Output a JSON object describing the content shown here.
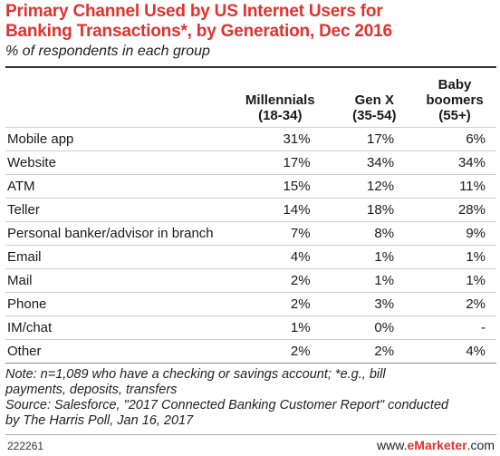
{
  "chart_data": {
    "type": "table",
    "title_line1": "Primary Channel Used by US Internet Users for",
    "title_line2": "Banking Transactions*, by Generation, Dec 2016",
    "subtitle": "% of respondents in each group",
    "columns": [
      {
        "line1": "Millennials",
        "line2": "(18-34)",
        "line3": ""
      },
      {
        "line1": "Gen X",
        "line2": "(35-54)",
        "line3": ""
      },
      {
        "line1": "Baby",
        "line2": "boomers",
        "line3": "(55+)"
      }
    ],
    "rows": [
      {
        "label": "Mobile app",
        "values": [
          "31%",
          "17%",
          "6%"
        ]
      },
      {
        "label": "Website",
        "values": [
          "17%",
          "34%",
          "34%"
        ]
      },
      {
        "label": "ATM",
        "values": [
          "15%",
          "12%",
          "11%"
        ]
      },
      {
        "label": "Teller",
        "values": [
          "14%",
          "18%",
          "28%"
        ]
      },
      {
        "label": "Personal banker/advisor in branch",
        "values": [
          "7%",
          "8%",
          "9%"
        ]
      },
      {
        "label": "Email",
        "values": [
          "4%",
          "1%",
          "1%"
        ]
      },
      {
        "label": "Mail",
        "values": [
          "2%",
          "1%",
          "1%"
        ]
      },
      {
        "label": "Phone",
        "values": [
          "2%",
          "3%",
          "2%"
        ]
      },
      {
        "label": "IM/chat",
        "values": [
          "1%",
          "0%",
          "-"
        ]
      },
      {
        "label": "Other",
        "values": [
          "2%",
          "2%",
          "4%"
        ]
      }
    ]
  },
  "notes": {
    "line1": "Note: n=1,089 who have a checking or savings account; *e.g., bill",
    "line2": "payments, deposits, transfers",
    "line3": "Source: Salesforce, \"2017 Connected Banking Customer Report\" conducted",
    "line4": "by The Harris Poll, Jan 16, 2017"
  },
  "footer": {
    "id": "222261",
    "brand_prefix": "www.",
    "brand_name": "eMarketer",
    "brand_suffix": ".com"
  },
  "colors": {
    "title": "#e3312d",
    "brand": "#e3312d"
  }
}
